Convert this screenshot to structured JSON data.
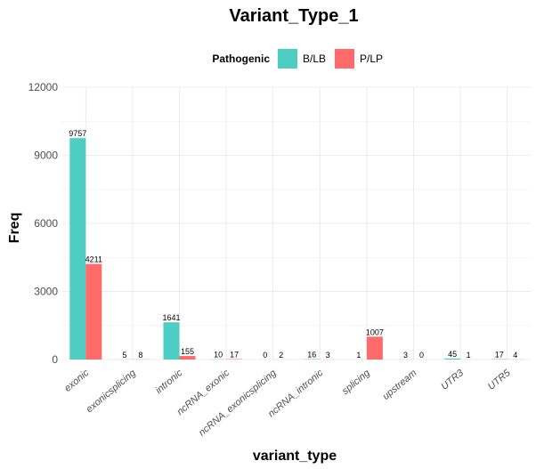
{
  "chart_data": {
    "type": "bar",
    "title": "Variant_Type_1",
    "xlabel": "variant_type",
    "ylabel": "Freq",
    "ylim": [
      0,
      12000
    ],
    "yticks": [
      0,
      3000,
      6000,
      9000,
      12000
    ],
    "grid": true,
    "legend": {
      "title": "Pathogenic",
      "placement": "top"
    },
    "categories": [
      "exonic",
      "exonicsplicing",
      "intronic",
      "ncRNA_exonic",
      "ncRNA_exonicsplicing",
      "ncRNA_intronic",
      "splicing",
      "upstream",
      "UTR3",
      "UTR5"
    ],
    "series": [
      {
        "name": "B/LB",
        "color": "#4ECDC4",
        "values": [
          9757,
          5,
          1641,
          10,
          0,
          16,
          1,
          3,
          45,
          17
        ]
      },
      {
        "name": "P/LP",
        "color": "#FF6B6B",
        "values": [
          4211,
          8,
          155,
          17,
          2,
          3,
          1007,
          0,
          1,
          4
        ]
      }
    ]
  }
}
